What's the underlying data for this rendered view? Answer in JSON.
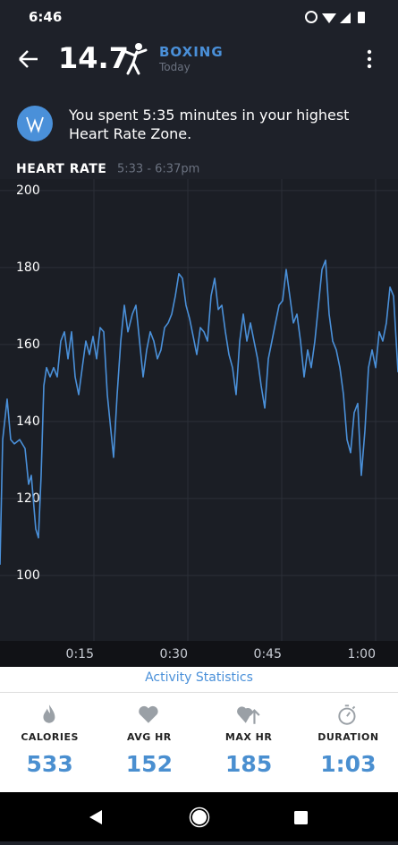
{
  "status_bar": {
    "time": "6:46"
  },
  "header": {
    "score": "14.7",
    "activity": "BOXING",
    "date": "Today"
  },
  "message": "You spent 5:35 minutes in your highest Heart Rate Zone.",
  "chart_data": {
    "type": "line",
    "title": "HEART RATE",
    "subtitle": "5:33 - 6:37pm",
    "color": "#4a90d9",
    "grid": true,
    "x": [
      0,
      0.43,
      1.14,
      1.71,
      2.29,
      3.14,
      4,
      4.57,
      5,
      5.71,
      6.14,
      6.57,
      7,
      7.43,
      8,
      8.57,
      9.14,
      9.71,
      10.29,
      10.86,
      11.43,
      12,
      12.57,
      13.14,
      13.71,
      14.29,
      14.86,
      15.43,
      16,
      16.57,
      17.14,
      17.71,
      18.14,
      18.71,
      19.29,
      19.86,
      20.43,
      21.14,
      21.71,
      22.29,
      22.86,
      23.43,
      24,
      24.57,
      25.14,
      25.71,
      26.29,
      26.86,
      27.43,
      28,
      28.57,
      29.14,
      29.71,
      30.29,
      30.86,
      31.43,
      32,
      32.57,
      33.14,
      33.71,
      34.29,
      34.86,
      35.43,
      36,
      36.57,
      37.14,
      37.71,
      38.29,
      38.86,
      39.43,
      40,
      40.57,
      41.14,
      41.71,
      42.29,
      42.86,
      43.43,
      44,
      44.57,
      45.14,
      45.71,
      46.29,
      46.86,
      47.43,
      48,
      48.57,
      49.14,
      49.71,
      50.29,
      50.86,
      51.43,
      52,
      52.57,
      53.14,
      53.71,
      54.29,
      54.86,
      55.43,
      56,
      56.57,
      57.14,
      57.71,
      58.29,
      58.86,
      59.43,
      60,
      60.57,
      61.14,
      61.71,
      62.29,
      62.86,
      63.57
    ],
    "values": [
      102.8,
      135.3,
      145.8,
      135.3,
      134.2,
      135.3,
      133.0,
      123.7,
      126.0,
      112.1,
      109.8,
      126.0,
      149.3,
      154.0,
      151.6,
      154.0,
      151.6,
      160.9,
      163.3,
      156.3,
      163.3,
      151.6,
      147.0,
      154.0,
      160.9,
      157.4,
      162.1,
      156.3,
      164.4,
      163.3,
      147.0,
      137.7,
      130.7,
      147.0,
      160.9,
      170.2,
      163.3,
      167.9,
      170.2,
      160.9,
      151.6,
      158.6,
      163.3,
      160.9,
      156.3,
      158.6,
      164.4,
      165.6,
      167.9,
      172.6,
      178.4,
      177.2,
      170.2,
      166.7,
      162.1,
      157.4,
      164.4,
      163.3,
      160.9,
      172.6,
      177.2,
      169.1,
      170.2,
      163.3,
      157.4,
      154.0,
      147.0,
      160.9,
      167.9,
      160.9,
      165.6,
      160.9,
      156.3,
      149.3,
      143.5,
      156.3,
      160.9,
      165.6,
      170.2,
      171.4,
      179.5,
      172.6,
      165.6,
      167.9,
      160.9,
      151.6,
      158.6,
      154.0,
      160.9,
      170.2,
      179.5,
      181.9,
      167.9,
      160.9,
      158.6,
      154.0,
      147.0,
      135.3,
      131.9,
      142.3,
      144.7,
      126.0,
      137.7,
      154.0,
      158.6,
      154.0,
      163.3,
      160.9,
      165.6,
      174.9,
      172.6,
      152.8
    ],
    "xlim": [
      0,
      63.57
    ],
    "ylim": [
      83,
      203
    ],
    "xticks": [
      {
        "value": 15,
        "label": "0:15"
      },
      {
        "value": 30,
        "label": "0:30"
      },
      {
        "value": 45,
        "label": "0:45"
      },
      {
        "value": 60,
        "label": "1:00"
      }
    ],
    "yticks": [
      100,
      120,
      140,
      160,
      180,
      200
    ]
  },
  "stats": {
    "title": "Activity Statistics",
    "items": [
      {
        "label": "CALORIES",
        "value": "533"
      },
      {
        "label": "AVG HR",
        "value": "152"
      },
      {
        "label": "MAX HR",
        "value": "185"
      },
      {
        "label": "DURATION",
        "value": "1:03"
      }
    ]
  }
}
